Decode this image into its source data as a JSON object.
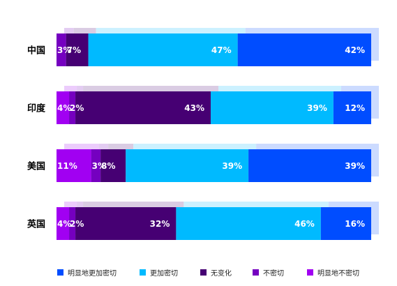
{
  "chart_data": {
    "type": "bar",
    "orientation": "horizontal",
    "stacked": true,
    "categories": [
      "中国",
      "印度",
      "美国",
      "英国"
    ],
    "series": [
      {
        "name": "明显地不密切",
        "color": "#A100F2",
        "values": [
          0,
          4,
          11,
          4
        ]
      },
      {
        "name": "不密切",
        "color": "#7500C0",
        "values": [
          3,
          2,
          3,
          2
        ]
      },
      {
        "name": "无变化",
        "color": "#460073",
        "values": [
          7,
          43,
          8,
          32
        ]
      },
      {
        "name": "更加密切",
        "color": "#00BAFF",
        "values": [
          47,
          39,
          39,
          46
        ]
      },
      {
        "name": "明显地更加密切",
        "color": "#004DFF",
        "values": [
          42,
          12,
          39,
          16
        ]
      }
    ],
    "data_labels": [
      [
        "",
        "3%",
        "7%",
        "47%",
        "42%"
      ],
      [
        "4%",
        "2%",
        "43%",
        "39%",
        "12%"
      ],
      [
        "11%",
        "3%",
        "8%",
        "39%",
        "39%"
      ],
      [
        "4%",
        "2%",
        "32%",
        "46%",
        "16%"
      ]
    ],
    "legend": {
      "position": "bottom",
      "order": [
        "明显地更加密切",
        "更加密切",
        "无变化",
        "不密切",
        "明显地不密切"
      ]
    },
    "grid": false
  }
}
